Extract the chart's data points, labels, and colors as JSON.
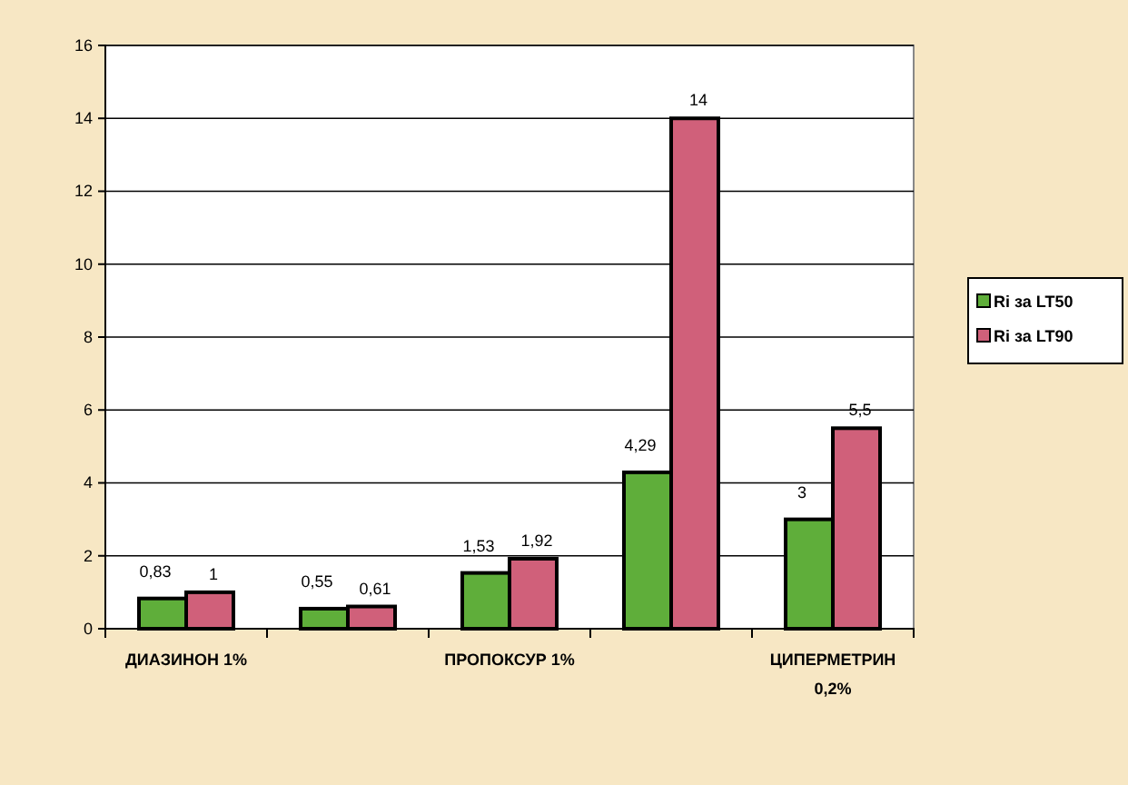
{
  "chart_data": {
    "type": "bar",
    "categories": [
      "ДИАЗИНОН 1%",
      null,
      "ПРОПОКСУР 1%",
      null,
      "ЦИПЕРМЕТРИН 0,2%"
    ],
    "series": [
      {
        "name": "Ri за LT50",
        "color": "#5fae3a",
        "values": [
          0.83,
          0.55,
          1.53,
          4.29,
          3
        ],
        "value_labels": [
          "0,83",
          "0,55",
          "1,53",
          "4,29",
          "3"
        ]
      },
      {
        "name": "Ri за LT90",
        "color": "#d0607a",
        "values": [
          1,
          0.61,
          1.92,
          14,
          5.5
        ],
        "value_labels": [
          "1",
          "0,61",
          "1,92",
          "14",
          "5,5"
        ]
      }
    ],
    "ylim": [
      0,
      16
    ],
    "yticks": [
      0,
      2,
      4,
      6,
      8,
      10,
      12,
      14,
      16
    ],
    "grid": "y",
    "legend": "right"
  }
}
